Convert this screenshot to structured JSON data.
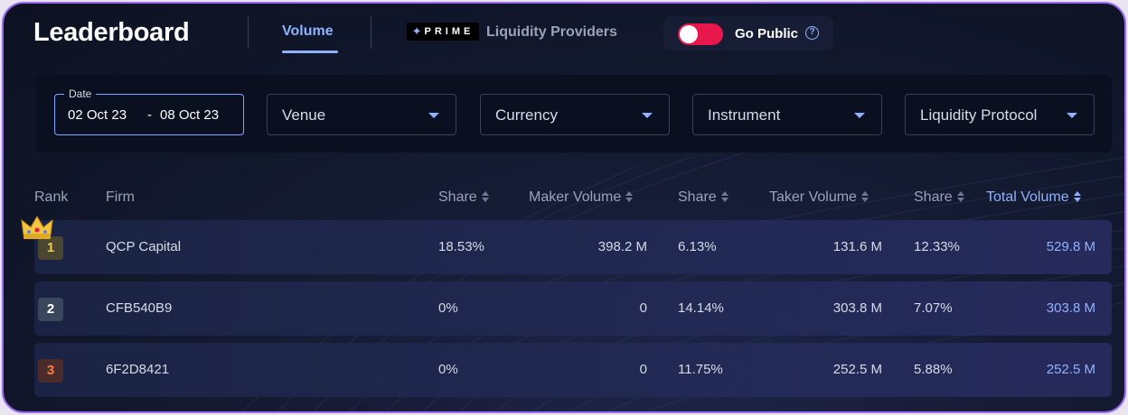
{
  "header": {
    "title": "Leaderboard",
    "tabs": [
      {
        "label": "Volume",
        "active": true
      },
      {
        "label": "Liquidity Providers",
        "badge": "PRIME",
        "active": false
      }
    ],
    "go_public": {
      "label": "Go Public",
      "enabled": true,
      "help_icon": "question-circle-icon"
    }
  },
  "filters": {
    "date": {
      "label": "Date",
      "from": "02 Oct 23",
      "separator": "-",
      "to": "08 Oct 23"
    },
    "selects": [
      {
        "label": "Venue"
      },
      {
        "label": "Currency"
      },
      {
        "label": "Instrument"
      },
      {
        "label": "Liquidity Protocol"
      }
    ]
  },
  "table": {
    "columns": {
      "rank": "Rank",
      "firm": "Firm",
      "maker_share": "Share",
      "maker_volume": "Maker Volume",
      "taker_share": "Share",
      "taker_volume": "Taker Volume",
      "total_share": "Share",
      "total_volume": "Total Volume"
    },
    "rows": [
      {
        "rank": "1",
        "firm": "QCP Capital",
        "maker_share": "18.53%",
        "maker_volume": "398.2 M",
        "taker_share": "6.13%",
        "taker_volume": "131.6 M",
        "total_share": "12.33%",
        "total_volume": "529.8 M"
      },
      {
        "rank": "2",
        "firm": "CFB540B9",
        "maker_share": "0%",
        "maker_volume": "0",
        "taker_share": "14.14%",
        "taker_volume": "303.8 M",
        "total_share": "7.07%",
        "total_volume": "303.8 M"
      },
      {
        "rank": "3",
        "firm": "6F2D8421",
        "maker_share": "0%",
        "maker_volume": "0",
        "taker_share": "11.75%",
        "taker_volume": "252.5 M",
        "total_share": "5.88%",
        "total_volume": "252.5 M"
      }
    ]
  },
  "colors": {
    "accent": "#8fb2ff",
    "toggle_on": "#e8174c",
    "gold": "#f2c94c",
    "bronze": "#ff7a45",
    "frame_border": "#9a6bf0"
  }
}
